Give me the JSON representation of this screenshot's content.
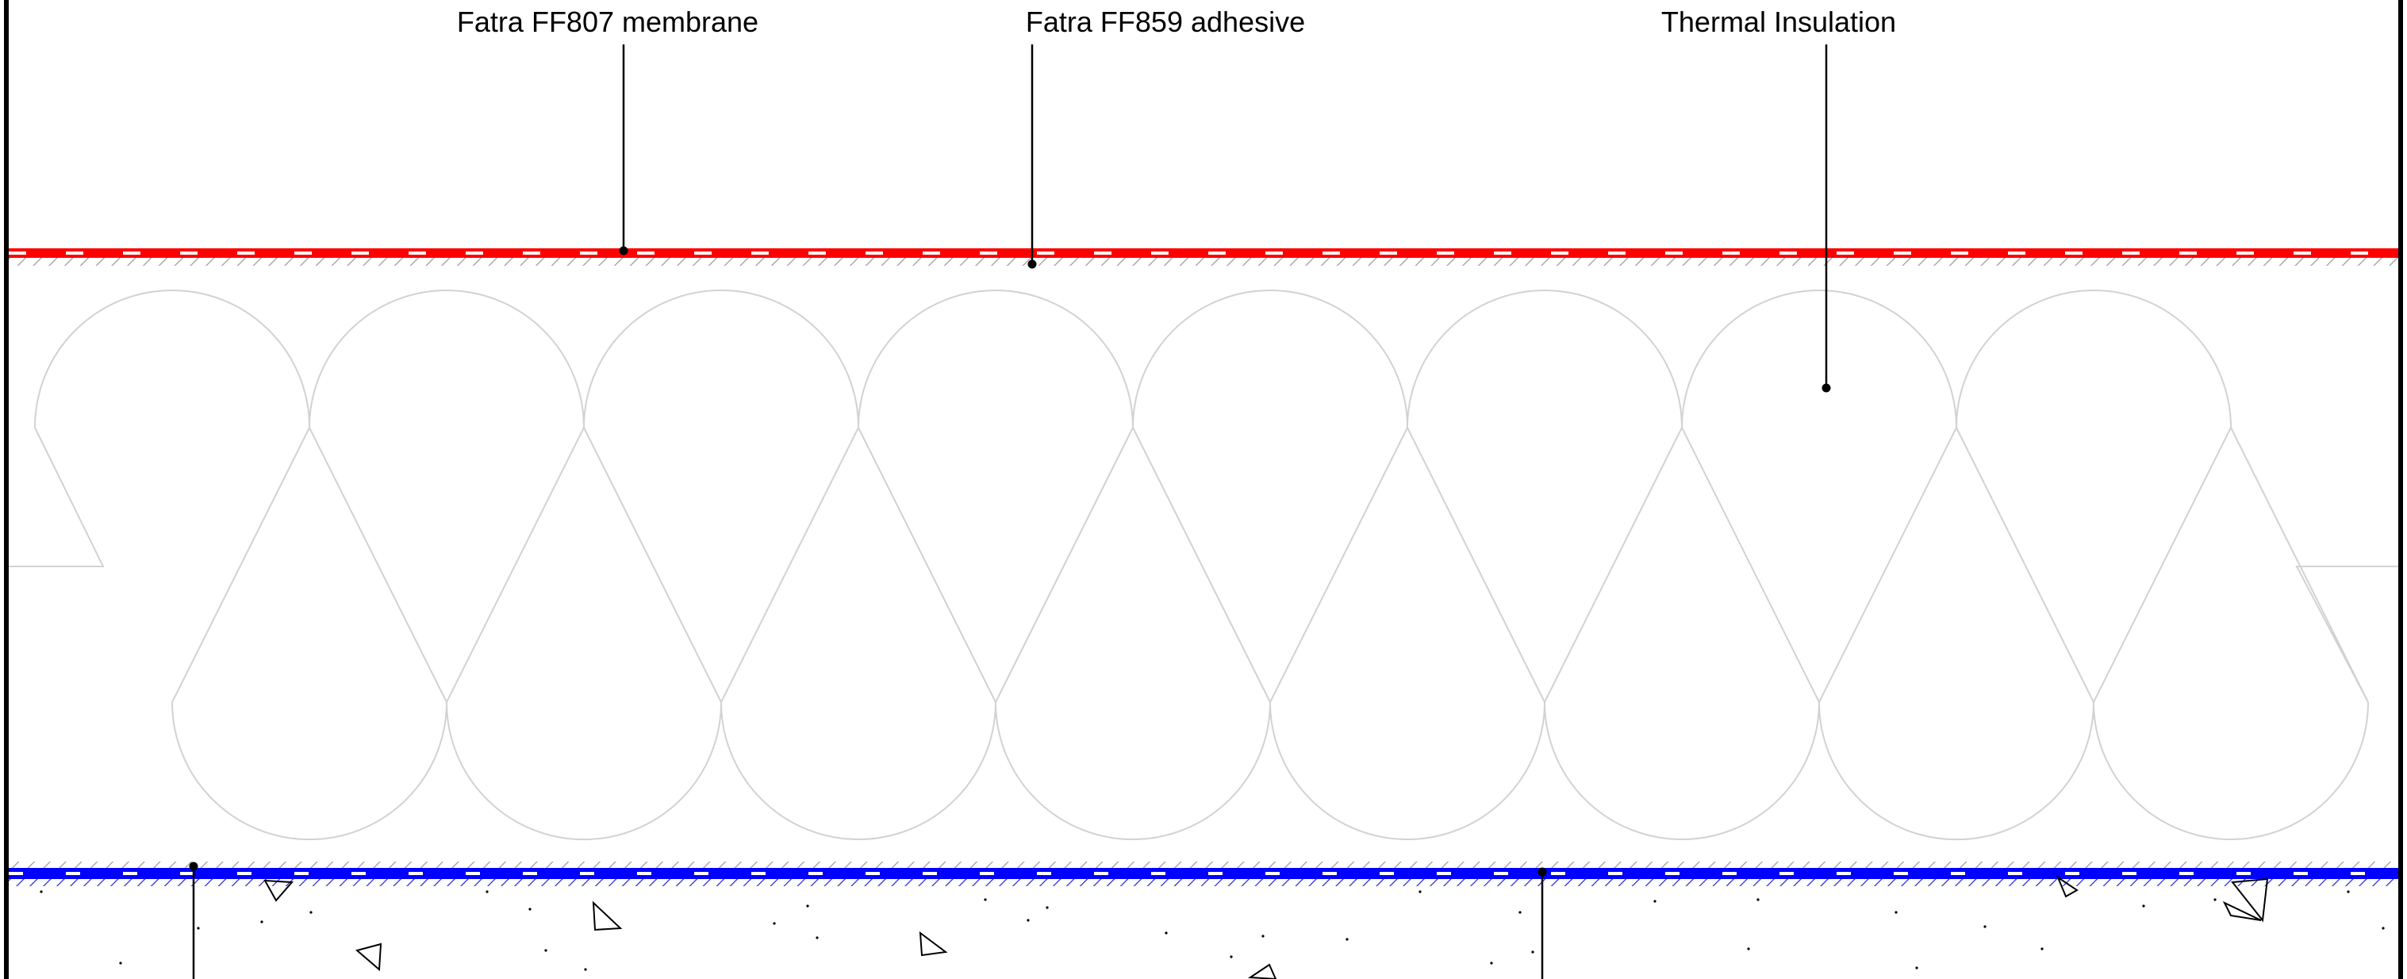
{
  "labels": {
    "membrane": "Fatra FF807 membrane",
    "adhesive": "Fatra FF859 adhesive",
    "insulation": "Thermal Insulation"
  },
  "colors": {
    "membrane": "#ff0000",
    "vapour_layer": "#0000ff",
    "hatch": "#9a9a9a",
    "insulation_lines": "#d2d2d2",
    "frame": "#000000",
    "leader": "#000000"
  }
}
